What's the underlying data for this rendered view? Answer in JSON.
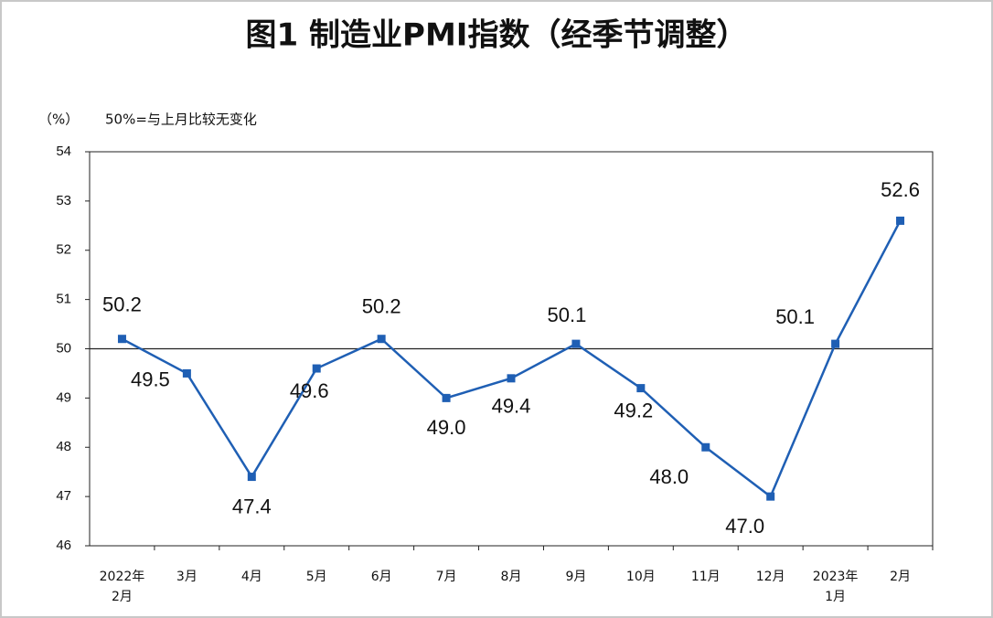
{
  "chart_data": {
    "type": "line",
    "title": "图1 制造业PMI指数（经季节调整）",
    "y_unit": "（%）",
    "annotation": "50%=与上月比较无变化",
    "categories": [
      "2022年\n2月",
      "3月",
      "4月",
      "5月",
      "6月",
      "7月",
      "8月",
      "9月",
      "10月",
      "11月",
      "12月",
      "2023年\n1月",
      "2月"
    ],
    "values": [
      50.2,
      49.5,
      47.4,
      49.6,
      50.2,
      49.0,
      49.4,
      50.1,
      49.2,
      48.0,
      47.0,
      50.1,
      52.6
    ],
    "value_labels": [
      "50.2",
      "49.5",
      "47.4",
      "49.6",
      "50.2",
      "49.0",
      "49.4",
      "50.1",
      "49.2",
      "48.0",
      "47.0",
      "50.1",
      "52.6"
    ],
    "color": "#1f5fb4",
    "reference_line": 50,
    "ylim": [
      46,
      54
    ],
    "yticks": [
      46,
      47,
      48,
      49,
      50,
      51,
      52,
      53,
      54
    ]
  }
}
